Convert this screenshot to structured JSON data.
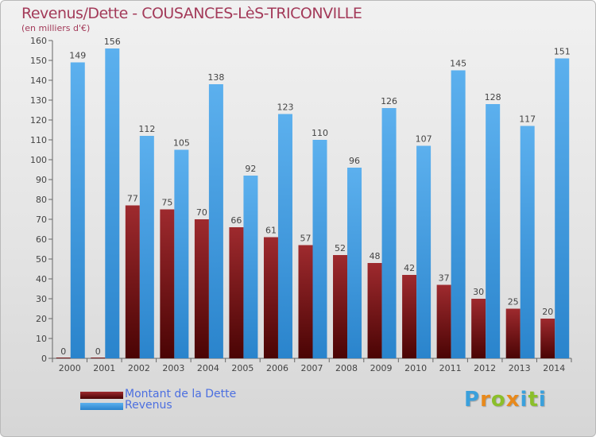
{
  "chart_data": {
    "type": "bar",
    "title": "Revenus/Dette - COUSANCES-LèS-TRICONVILLE",
    "subtitle": "(en milliers d'€)",
    "categories": [
      "2000",
      "2001",
      "2002",
      "2003",
      "2004",
      "2005",
      "2006",
      "2007",
      "2008",
      "2009",
      "2010",
      "2011",
      "2012",
      "2013",
      "2014"
    ],
    "series": [
      {
        "name": "Montant de la Dette",
        "color": "#7a0f10",
        "values": [
          0,
          0,
          77,
          75,
          70,
          66,
          61,
          57,
          52,
          48,
          42,
          37,
          30,
          25,
          20
        ]
      },
      {
        "name": "Revenus",
        "color": "#3d9be0",
        "values": [
          149,
          156,
          112,
          105,
          138,
          92,
          123,
          110,
          96,
          126,
          107,
          145,
          128,
          117,
          151
        ]
      }
    ],
    "ylim": [
      0,
      160
    ],
    "yticks": [
      0,
      10,
      20,
      30,
      40,
      50,
      60,
      70,
      80,
      90,
      100,
      110,
      120,
      130,
      140,
      150,
      160
    ],
    "grid": false,
    "legend_position": "bottom-left"
  },
  "brand": {
    "name": "Proxiti",
    "letters": [
      "P",
      "r",
      "o",
      "x",
      "i",
      "t",
      "i"
    ],
    "colors": [
      "#3aa0dc",
      "#e8891b",
      "#8bbf2a",
      "#e8891b",
      "#3aa0dc",
      "#8bbf2a",
      "#3aa0dc"
    ]
  }
}
